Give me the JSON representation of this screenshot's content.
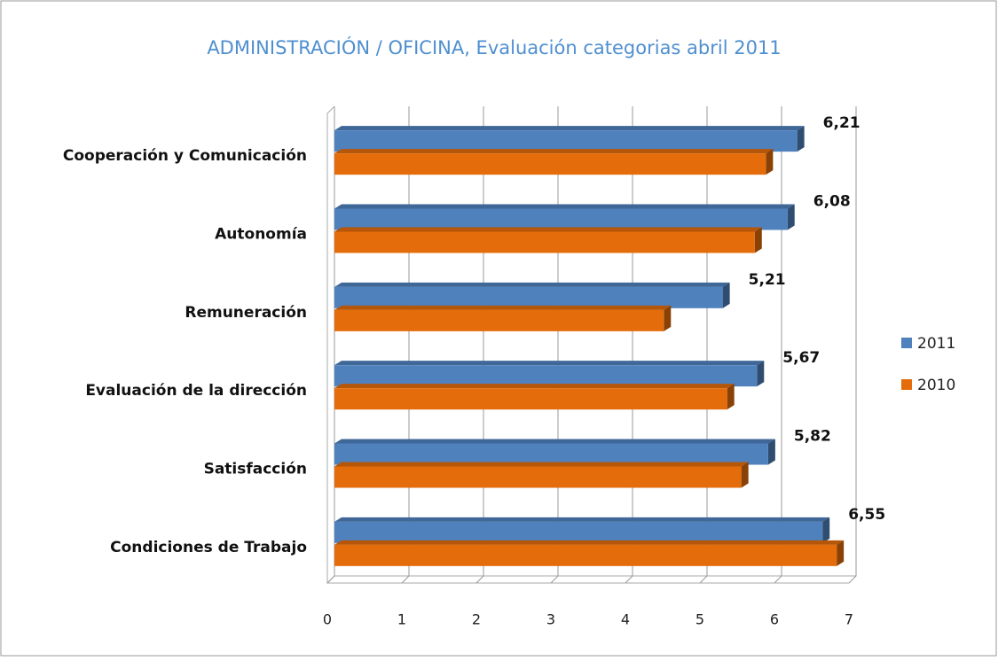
{
  "chart_data": {
    "type": "bar",
    "orientation": "horizontal",
    "title": "ADMINISTRACIÓN / OFICINA, Evaluación categorias abril 2011",
    "categories": [
      "Cooperación y Comunicación",
      "Autonomía",
      "Remuneración",
      "Evaluación de la dirección",
      "Satisfacción",
      "Condiciones de Trabajo"
    ],
    "series": [
      {
        "name": "2011",
        "color": "#4f81bd",
        "values": [
          6.21,
          6.08,
          5.21,
          5.67,
          5.82,
          6.55
        ],
        "value_labels": [
          "6,21",
          "6,08",
          "5,21",
          "5,67",
          "5,82",
          "6,55"
        ]
      },
      {
        "name": "2010",
        "color": "#e46c0a",
        "values": [
          5.79,
          5.64,
          4.42,
          5.27,
          5.46,
          6.74
        ]
      }
    ],
    "xlim": [
      0,
      7
    ],
    "xticks": [
      0,
      1,
      2,
      3,
      4,
      5,
      6,
      7
    ],
    "grid": true,
    "legend": "right"
  }
}
